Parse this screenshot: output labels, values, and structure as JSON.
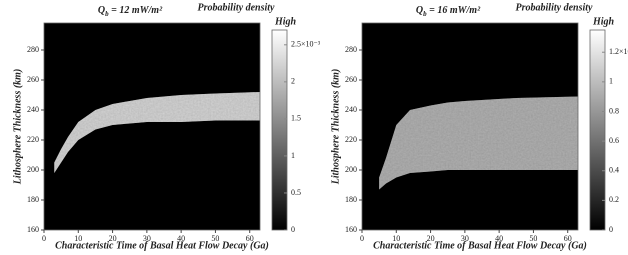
{
  "chart_data": [
    {
      "type": "band",
      "title": {
        "symbol": "Q",
        "subscript": "b",
        "rest": " = 12 mW/m²"
      },
      "x_label": "Characteristic Time of Basal Heat Flow Decay (Ga)",
      "y_label": "Lithosphere Thickness (km)",
      "x": [
        3,
        5,
        7,
        10,
        15,
        20,
        25,
        30,
        40,
        50,
        63
      ],
      "lower": [
        198,
        205,
        212,
        220,
        227,
        230,
        231,
        232,
        232,
        233,
        233
      ],
      "upper": [
        205,
        214,
        222,
        232,
        240,
        244,
        246,
        248,
        250,
        251,
        252
      ],
      "color": "#d8d8d8",
      "xlim": [
        0,
        63
      ],
      "xticks": [
        0,
        10,
        20,
        30,
        40,
        50,
        60
      ],
      "ylim": [
        160,
        298
      ],
      "yticks": [
        160,
        180,
        200,
        220,
        240,
        260,
        280
      ],
      "colorbar": {
        "label": "Probability density",
        "top_label": "High",
        "lim": [
          0,
          2.7
        ],
        "ticks": [
          0,
          0.5,
          1,
          1.5,
          2,
          {
            "value": 2.5,
            "label": "2.5×10⁻³"
          }
        ]
      }
    },
    {
      "type": "band",
      "title": {
        "symbol": "Q",
        "subscript": "b",
        "rest": " = 16 mW/m²"
      },
      "x_label": "Characteristic Time of Basal Heat Flow Decay (Ga)",
      "y_label": "Lithosphere Thickness (km)",
      "x": [
        5,
        7,
        10,
        14,
        20,
        25,
        30,
        45,
        63
      ],
      "lower": [
        187,
        191,
        195,
        198,
        199,
        200,
        200,
        200,
        200
      ],
      "upper": [
        195,
        208,
        230,
        240,
        243,
        245,
        246,
        248,
        249
      ],
      "color": "#b4b4b4",
      "xlim": [
        0,
        63
      ],
      "xticks": [
        0,
        10,
        20,
        30,
        40,
        50,
        60
      ],
      "ylim": [
        160,
        298
      ],
      "yticks": [
        160,
        180,
        200,
        220,
        240,
        260,
        280
      ],
      "colorbar": {
        "label": "Probability density",
        "top_label": "High",
        "lim": [
          0,
          1.35
        ],
        "ticks": [
          0,
          0.2,
          0.4,
          0.6,
          0.8,
          1,
          {
            "value": 1.2,
            "label": "1.2×10⁻³"
          }
        ]
      }
    }
  ]
}
